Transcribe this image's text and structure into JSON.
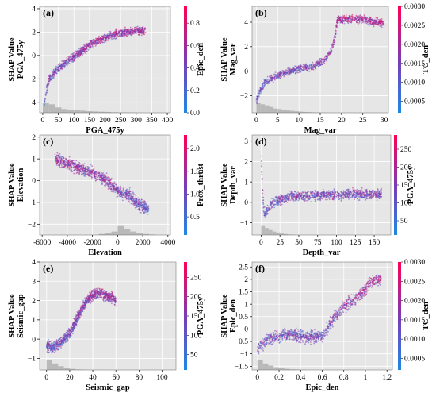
{
  "chart_data": [
    {
      "type": "scatter",
      "panel_label": "(a)",
      "xlabel": "PGA_475y",
      "ylabel": [
        "SHAP Value",
        "PGA_475y"
      ],
      "colorbar_label": "Epic_den",
      "xlim": [
        -10,
        410
      ],
      "ylim": [
        -4.9,
        4.2
      ],
      "xticks": [
        0,
        50,
        100,
        150,
        200,
        250,
        300,
        350,
        400
      ],
      "yticks": [
        -4,
        -2,
        0,
        2,
        4
      ],
      "cbar_range": [
        0,
        0.95
      ],
      "cbar_ticks": [
        0.0,
        0.2,
        0.4,
        0.6,
        0.8
      ],
      "cbar_tick_labels": [
        "0.0",
        "0.2",
        "0.4",
        "0.6",
        "0.8"
      ],
      "trend": {
        "x": [
          5,
          10,
          20,
          40,
          60,
          90,
          120,
          150,
          180,
          210,
          240,
          270,
          300,
          330
        ],
        "y": [
          -4.2,
          -3.3,
          -2.1,
          -1.4,
          -0.9,
          -0.3,
          0.3,
          0.9,
          1.3,
          1.6,
          1.9,
          2.0,
          2.1,
          2.1
        ]
      },
      "spread": 0.5,
      "hist": {
        "bins": [
          0,
          20,
          40,
          60,
          80,
          100,
          120,
          140,
          160,
          180,
          200,
          220,
          240,
          260,
          280,
          300
        ],
        "heights": [
          0.9,
          0.8,
          0.5,
          0.35,
          0.3,
          0.25,
          0.2,
          0.15,
          0.12,
          0.1,
          0.08,
          0.05,
          0.04,
          0.03,
          0.02,
          0.01
        ],
        "width": 20
      }
    },
    {
      "type": "scatter",
      "panel_label": "(b)",
      "xlabel": "Mag_var",
      "ylabel": [
        "SHAP Value",
        "Mag_var"
      ],
      "colorbar_label": "TC_den",
      "xlim": [
        -1,
        31
      ],
      "ylim": [
        -3.4,
        5.3
      ],
      "xticks": [
        0,
        5,
        10,
        15,
        20,
        25,
        30
      ],
      "yticks": [
        -2,
        0,
        2,
        4
      ],
      "cbar_range": [
        0.0002,
        0.003
      ],
      "cbar_ticks": [
        0.0005,
        0.001,
        0.0015,
        0.002,
        0.0025,
        0.003
      ],
      "cbar_tick_labels": [
        "0.0005",
        "0.0010",
        "0.0015",
        "0.0020",
        "0.0025",
        "0.0030"
      ],
      "trend": {
        "x": [
          0,
          1,
          2,
          4,
          6,
          8,
          10,
          12,
          14,
          16,
          17.5,
          18.5,
          19,
          22,
          25,
          28,
          30
        ],
        "y": [
          -2.4,
          -1.5,
          -0.9,
          -0.5,
          -0.2,
          0.0,
          0.2,
          0.3,
          0.5,
          0.9,
          1.6,
          2.8,
          4.2,
          4.3,
          4.2,
          4.0,
          3.9
        ]
      },
      "spread": 0.45,
      "hist": {
        "bins": [
          0,
          1,
          2,
          3,
          4,
          5,
          6,
          7,
          8,
          9,
          10,
          11,
          12,
          13,
          14,
          15,
          16
        ],
        "heights": [
          0.9,
          0.8,
          0.7,
          0.55,
          0.4,
          0.35,
          0.3,
          0.22,
          0.18,
          0.14,
          0.1,
          0.08,
          0.06,
          0.04,
          0.03,
          0.02,
          0.01
        ],
        "width": 1
      }
    },
    {
      "type": "scatter",
      "panel_label": "(c)",
      "xlabel": "Elevation",
      "ylabel": [
        "SHAP Value",
        "Elevation"
      ],
      "colorbar_label": "Prox_thrust",
      "xlim": [
        -6200,
        4200
      ],
      "ylim": [
        -2.5,
        2.1
      ],
      "xticks": [
        -6000,
        -4000,
        -2000,
        0,
        2000,
        4000
      ],
      "yticks": [
        -2,
        -1,
        0,
        1,
        2
      ],
      "cbar_range": [
        0.1,
        2.3
      ],
      "cbar_ticks": [
        0.5,
        1.0,
        1.5,
        2.0
      ],
      "cbar_tick_labels": [
        "0.5",
        "1.0",
        "1.5",
        "2.0"
      ],
      "trend": {
        "x": [
          -5000,
          -4500,
          -4000,
          -3000,
          -2000,
          -1500,
          -1000,
          -500,
          0,
          500,
          1000,
          1500,
          2000,
          2500
        ],
        "y": [
          1.0,
          0.9,
          0.8,
          0.55,
          0.35,
          0.2,
          0.05,
          -0.2,
          -0.5,
          -0.6,
          -0.7,
          -1.0,
          -1.2,
          -1.3
        ]
      },
      "spread": 0.4,
      "hist": {
        "bins": [
          -1500,
          -1000,
          -500,
          0,
          500,
          1000,
          1500,
          2000,
          2500
        ],
        "heights": [
          0.1,
          0.2,
          0.35,
          0.9,
          0.6,
          0.35,
          0.2,
          0.1,
          0.05
        ],
        "width": 500
      }
    },
    {
      "type": "scatter",
      "panel_label": "(d)",
      "xlabel": "Depth_var",
      "ylabel": [
        "SHAP Value",
        "Depth_var"
      ],
      "colorbar_label": "PGA_475y",
      "xlim": [
        -12,
        172
      ],
      "ylim": [
        -1.6,
        3.3
      ],
      "xticks": [
        0,
        25,
        50,
        75,
        100,
        125,
        150
      ],
      "yticks": [
        -1,
        0,
        1,
        2,
        3
      ],
      "cbar_range": [
        10,
        290
      ],
      "cbar_ticks": [
        50,
        100,
        150,
        200,
        250
      ],
      "cbar_tick_labels": [
        "50",
        "100",
        "150",
        "200",
        "250"
      ],
      "trend": {
        "x": [
          0,
          1,
          2,
          3,
          5,
          8,
          12,
          20,
          30,
          40,
          50,
          60,
          80,
          100,
          120,
          140,
          160
        ],
        "y": [
          2.3,
          1.5,
          0.6,
          -0.2,
          -0.6,
          -0.4,
          -0.1,
          0.1,
          0.2,
          0.3,
          0.3,
          0.3,
          0.35,
          0.35,
          0.4,
          0.4,
          0.4
        ]
      },
      "spread": 0.35,
      "hist": {
        "bins": [
          0,
          5,
          10,
          15,
          20,
          25,
          30,
          35,
          40
        ],
        "heights": [
          0.9,
          0.7,
          0.5,
          0.35,
          0.25,
          0.15,
          0.1,
          0.05,
          0.03
        ],
        "width": 5
      }
    },
    {
      "type": "scatter",
      "panel_label": "(e)",
      "xlabel": "Seismic_gap",
      "ylabel": [
        "SHAP Value",
        "Seismic_gap"
      ],
      "colorbar_label": "PGA_475y",
      "xlim": [
        -6,
        112
      ],
      "ylim": [
        -1.6,
        4.0
      ],
      "xticks": [
        0,
        20,
        40,
        60,
        80,
        100
      ],
      "yticks": [
        -1,
        0,
        1,
        2,
        3,
        4
      ],
      "cbar_range": [
        10,
        290
      ],
      "cbar_ticks": [
        50,
        100,
        150,
        200,
        250
      ],
      "cbar_tick_labels": [
        "50",
        "100",
        "150",
        "200",
        "250"
      ],
      "trend": {
        "x": [
          0,
          2,
          5,
          10,
          15,
          20,
          25,
          30,
          35,
          40,
          45,
          50,
          55,
          60
        ],
        "y": [
          -0.3,
          -0.4,
          -0.4,
          -0.3,
          0.0,
          0.3,
          0.9,
          1.5,
          2.0,
          2.3,
          2.4,
          2.3,
          2.2,
          2.0
        ]
      },
      "spread": 0.4,
      "hist": {
        "bins": [
          0,
          5,
          10,
          15,
          20,
          25,
          30
        ],
        "heights": [
          0.9,
          0.6,
          0.35,
          0.2,
          0.1,
          0.05,
          0.03
        ],
        "width": 5
      }
    },
    {
      "type": "scatter",
      "panel_label": "(f)",
      "xlabel": "Epic_den",
      "ylabel": [
        "SHAP Value",
        "Epic_den"
      ],
      "colorbar_label": "TC_den",
      "xlim": [
        -0.05,
        1.25
      ],
      "ylim": [
        -1.65,
        2.7
      ],
      "xticks": [
        0.0,
        0.2,
        0.4,
        0.6,
        0.8,
        1.0,
        1.2
      ],
      "yticks": [
        -1.5,
        -1.0,
        -0.5,
        0.0,
        0.5,
        1.0,
        1.5,
        2.0,
        2.5
      ],
      "cbar_range": [
        0.0002,
        0.003
      ],
      "cbar_ticks": [
        0.0005,
        0.001,
        0.0015,
        0.002,
        0.0025,
        0.003
      ],
      "cbar_tick_labels": [
        "0.0005",
        "0.0010",
        "0.0015",
        "0.0020",
        "0.0025",
        "0.0030"
      ],
      "trend": {
        "x": [
          0.0,
          0.05,
          0.1,
          0.2,
          0.3,
          0.4,
          0.5,
          0.6,
          0.65,
          0.7,
          0.8,
          0.9,
          1.0,
          1.05,
          1.1,
          1.15
        ],
        "y": [
          -0.8,
          -0.6,
          -0.4,
          -0.3,
          -0.2,
          -0.3,
          -0.3,
          -0.3,
          0.0,
          0.4,
          0.9,
          1.2,
          1.6,
          1.9,
          2.0,
          2.0
        ]
      },
      "spread": 0.35,
      "hist": {
        "bins": [
          0.0,
          0.05,
          0.1,
          0.15,
          0.2,
          0.25,
          0.3,
          0.35,
          0.4
        ],
        "heights": [
          0.9,
          0.6,
          0.4,
          0.25,
          0.15,
          0.1,
          0.06,
          0.04,
          0.02
        ],
        "width": 0.05
      }
    }
  ]
}
